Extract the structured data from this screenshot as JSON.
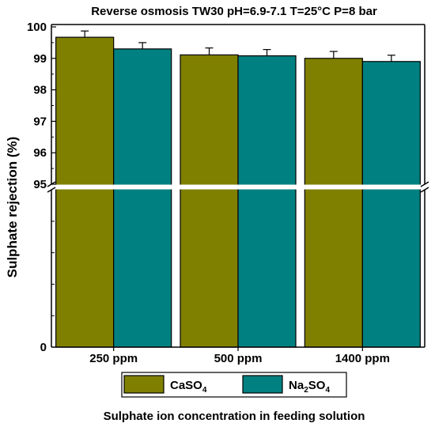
{
  "chart_data": {
    "type": "bar",
    "title": "Reverse osmosis TW30 pH=6.9-7.1 T=25°C P=8 bar",
    "xlabel": "Sulphate ion concentration in feeding solution",
    "ylabel": "Sulphate rejection (%)",
    "categories": [
      "250 ppm",
      "500 ppm",
      "1400 ppm"
    ],
    "series": [
      {
        "name": "CaSO",
        "subscript": "4",
        "color": "#808000",
        "values": [
          99.67,
          99.11,
          99.0
        ],
        "errors": [
          0.2,
          0.22,
          0.22
        ]
      },
      {
        "name": "Na",
        "subscript": "2",
        "name_suffix": "SO",
        "suffix_subscript": "4",
        "color": "#008080",
        "values": [
          99.3,
          99.08,
          98.9
        ],
        "errors": [
          0.2,
          0.2,
          0.2
        ]
      }
    ],
    "y_axis": {
      "broken": true,
      "lower_segment": {
        "range": [
          0,
          95
        ],
        "ticks": [
          "0"
        ]
      },
      "upper_segment": {
        "range": [
          95,
          100
        ],
        "ticks": [
          "95",
          "96",
          "97",
          "98",
          "99",
          "100"
        ]
      }
    },
    "grid": false,
    "legend_placement": "bottom-center"
  }
}
